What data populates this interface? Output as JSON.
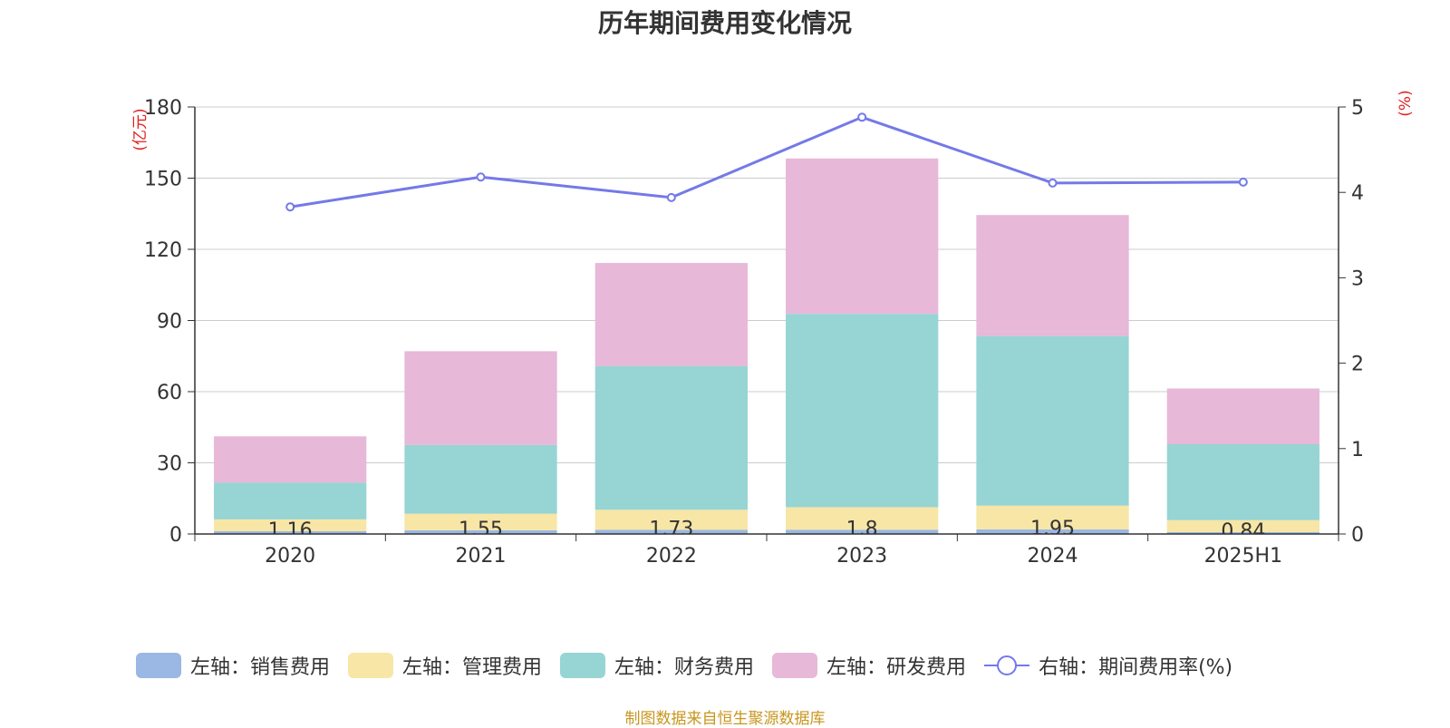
{
  "chart_data": {
    "type": "bar",
    "title": "历年期间费用变化情况",
    "categories": [
      "2020",
      "2021",
      "2022",
      "2023",
      "2024",
      "2025H1"
    ],
    "left_axis": {
      "unit_label": "(亿元)",
      "ylim": [
        0,
        180
      ],
      "ticks": [
        0,
        30,
        60,
        90,
        120,
        150,
        180
      ]
    },
    "right_axis": {
      "unit_label": "(%)",
      "ylim": [
        0,
        5
      ],
      "ticks": [
        0,
        1,
        2,
        3,
        4,
        5
      ]
    },
    "grid": true,
    "legend_position": "bottom",
    "series": [
      {
        "name": "左轴：销售费用",
        "axis": "left",
        "kind": "bar",
        "color": "#9bb7e3",
        "values": [
          1.16,
          1.55,
          1.73,
          1.8,
          1.95,
          0.84
        ],
        "labels": [
          "1.16",
          "1.55",
          "1.73",
          "1.8",
          "1.95",
          "0.84"
        ]
      },
      {
        "name": "左轴：管理费用",
        "axis": "left",
        "kind": "bar",
        "color": "#f7e6a6",
        "values": [
          5,
          7,
          8.5,
          9.5,
          10,
          5
        ]
      },
      {
        "name": "左轴：财务费用",
        "axis": "left",
        "kind": "bar",
        "color": "#97d4d4",
        "values": [
          15.5,
          29,
          60.5,
          81.5,
          71.5,
          32
        ]
      },
      {
        "name": "左轴：研发费用",
        "axis": "left",
        "kind": "bar",
        "color": "#e7b8d8",
        "values": [
          19.5,
          39.5,
          43.5,
          65.5,
          51,
          23.5
        ]
      },
      {
        "name": "右轴：期间费用率(%)",
        "axis": "right",
        "kind": "line",
        "color": "#7479e8",
        "values": [
          3.83,
          4.18,
          3.94,
          4.88,
          4.11,
          4.12
        ]
      }
    ]
  },
  "source": "制图数据来自恒生聚源数据库"
}
